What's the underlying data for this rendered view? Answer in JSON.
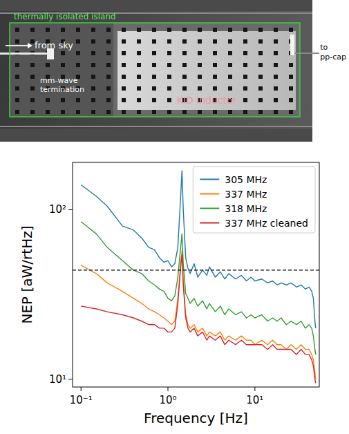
{
  "diagram": {
    "box_label": "thermally isolated island",
    "arrow_label": "from sky",
    "termination_label": "mm-wave termination",
    "inductor_label": "KID inductor",
    "output_label": "to pp-cap"
  },
  "chart_data": {
    "type": "line",
    "log": true,
    "x_label": "Frequency [Hz]",
    "y_label": "NEP [aW/rtHz]",
    "xlim": [
      0.08,
      55
    ],
    "ylim": [
      9,
      190
    ],
    "xticks": [
      {
        "value": 0.1,
        "label": "10⁻¹"
      },
      {
        "value": 1,
        "label": "10⁰"
      },
      {
        "value": 10,
        "label": "10¹"
      }
    ],
    "yticks": [
      {
        "value": 10,
        "label": "10¹"
      },
      {
        "value": 100,
        "label": "10²"
      }
    ],
    "hline": 44,
    "legend": "upper right",
    "x": [
      0.1,
      0.15,
      0.2,
      0.3,
      0.4,
      0.5,
      0.6,
      0.7,
      0.8,
      0.9,
      1.0,
      1.1,
      1.2,
      1.3,
      1.4,
      1.45,
      1.5,
      1.6,
      1.7,
      1.8,
      2.0,
      2.2,
      2.5,
      2.8,
      3,
      3.5,
      4,
      4.5,
      5,
      6,
      7,
      8,
      9,
      10,
      12,
      14,
      16,
      18,
      20,
      23,
      26,
      30,
      34,
      38,
      42,
      45,
      47,
      49,
      50
    ],
    "series": [
      {
        "name": "305 MHz",
        "color": "#1f77b4",
        "values": [
          140,
          120,
          105,
          80,
          76,
          68,
          60,
          58,
          52,
          49,
          50,
          46,
          48,
          60,
          120,
          170,
          100,
          52,
          45,
          42,
          48,
          40,
          44,
          41,
          46,
          40,
          43,
          39,
          42,
          39,
          41,
          38,
          40,
          38,
          39,
          37,
          38,
          36,
          37,
          36,
          37,
          35,
          36,
          34,
          35,
          33,
          30,
          22,
          20
        ]
      },
      {
        "name": "337 MHz",
        "color": "#ff7f0e",
        "values": [
          47,
          42,
          37,
          33,
          30,
          28,
          26,
          25,
          24,
          23,
          22,
          21,
          22,
          30,
          48,
          57,
          38,
          24,
          21,
          20,
          21,
          19,
          20,
          18,
          19,
          18,
          19,
          17,
          18,
          17,
          18,
          17,
          17,
          16,
          17,
          16,
          17,
          16,
          16,
          15,
          16,
          15,
          16,
          15,
          15,
          14,
          13,
          11,
          10
        ]
      },
      {
        "name": "318 MHz",
        "color": "#2ca02c",
        "values": [
          85,
          72,
          60,
          50,
          44,
          42,
          38,
          36,
          34,
          33,
          30,
          29,
          31,
          40,
          60,
          72,
          48,
          32,
          30,
          28,
          30,
          27,
          29,
          26,
          28,
          25,
          27,
          24,
          26,
          24,
          25,
          23,
          24,
          23,
          24,
          22,
          23,
          22,
          23,
          21,
          22,
          21,
          22,
          20,
          21,
          20,
          18,
          15,
          14
        ]
      },
      {
        "name": "337 MHz cleaned",
        "color": "#d62728",
        "values": [
          27,
          26,
          25,
          24,
          23,
          22,
          21,
          21,
          20,
          20,
          19,
          19,
          20,
          28,
          46,
          54,
          36,
          23,
          20,
          19,
          20,
          18,
          19,
          17,
          18,
          17,
          18,
          16,
          17,
          16,
          17,
          16,
          16,
          16,
          16,
          15,
          16,
          15,
          15,
          15,
          15,
          14,
          15,
          14,
          14,
          13,
          12,
          10,
          9.5
        ]
      }
    ]
  }
}
